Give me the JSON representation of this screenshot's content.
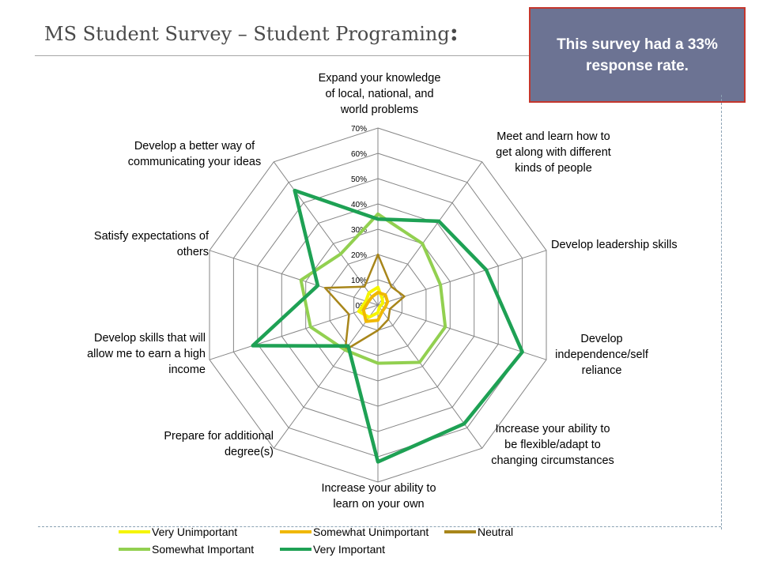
{
  "slide": {
    "title": "MS Student Survey – Student Programing",
    "title_colon": ":",
    "callout": "This survey had a 33% response rate."
  },
  "chart_data": {
    "type": "radar",
    "categories": [
      "Expand your knowledge of local, national, and world problems",
      "Meet and learn how to get along with different kinds of people",
      "Develop leadership skills",
      "Develop independence/self reliance",
      "Increase your ability to be flexible/adapt to changing circumstances",
      "Increase your ability to learn on your own",
      "Prepare for additional degree(s)",
      "Develop skills that will allow me to earn a high income",
      "Satisfy expectations of others",
      "Develop a better way of communicating your ideas"
    ],
    "ticks": [
      "0%",
      "10%",
      "20%",
      "30%",
      "40%",
      "50%",
      "60%",
      "70%"
    ],
    "rmax": 70,
    "series": [
      {
        "name": "Very Unimportant",
        "color": "#f5f500",
        "values": [
          7,
          3,
          2,
          1,
          1,
          3,
          6,
          8,
          5,
          6
        ]
      },
      {
        "name": "Somewhat Unimportant",
        "color": "#f0b800",
        "values": [
          5,
          5,
          4,
          3,
          3,
          6,
          8,
          6,
          4,
          4
        ]
      },
      {
        "name": "Neutral",
        "color": "#a8861a",
        "values": [
          20,
          9,
          11,
          5,
          7,
          10,
          22,
          12,
          22,
          9
        ]
      },
      {
        "name": "Somewhat Important",
        "color": "#92d050",
        "values": [
          36,
          30,
          26,
          28,
          28,
          23,
          22,
          28,
          32,
          25
        ]
      },
      {
        "name": "Very Important",
        "color": "#1ea154",
        "values": [
          34,
          41,
          45,
          60,
          58,
          62,
          20,
          52,
          25,
          56
        ]
      }
    ]
  }
}
